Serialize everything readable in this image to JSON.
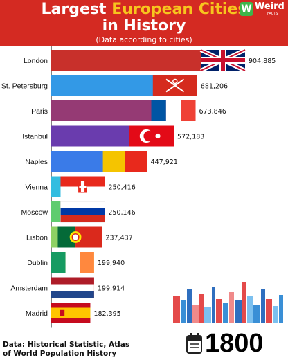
{
  "header": {
    "title_line1_a": "Largest ",
    "title_line1_b": "European Cities",
    "title_line2": "in History",
    "subtitle": "(Data according to cities)"
  },
  "logo": {
    "brand": "Weird",
    "sub": "FACTS",
    "mark": "W"
  },
  "colors": {
    "header_bg": "#d42a22",
    "highlight": "#f7c51e",
    "axis": "#333333"
  },
  "chart_data": {
    "type": "bar",
    "orientation": "horizontal",
    "categories": [
      "London",
      "St. Petersburg",
      "Paris",
      "Istanbul",
      "Naples",
      "Vienna",
      "Moscow",
      "Lisbon",
      "Dublin",
      "Amsterdam",
      "Madrid"
    ],
    "values": [
      904885,
      681206,
      673846,
      572183,
      447921,
      250416,
      250146,
      237437,
      199940,
      199914,
      182395
    ],
    "value_labels": [
      "904,885",
      "681,206",
      "673,846",
      "572,183",
      "447,921",
      "250,416",
      "250,146",
      "237,437",
      "199,940",
      "199,914",
      "182,395"
    ],
    "bar_colors": [
      "#c8302b",
      "#3399e6",
      "#953a74",
      "#6a3cae",
      "#3a7be8",
      "#33bde0",
      "#5fcc6f",
      "#8ed164",
      "#f2c744",
      "#e63c1e",
      "#b0b0b0"
    ],
    "flags": [
      "uk-flag",
      "st-petersburg-flag",
      "france-flag",
      "turkey-flag",
      "naples-flag",
      "vienna-flag",
      "russia-flag",
      "portugal-flag",
      "ireland-flag",
      "netherlands-flag",
      "spain-flag"
    ],
    "xlim": [
      0,
      1000000
    ],
    "grid": false,
    "legend": "none",
    "title": "Largest European Cities in History",
    "subtitle": "(Data according to cities)"
  },
  "footer": {
    "source_line1": "Data: Historical Statistic, Atlas",
    "source_line2": "of World Population History",
    "year": "1800"
  }
}
